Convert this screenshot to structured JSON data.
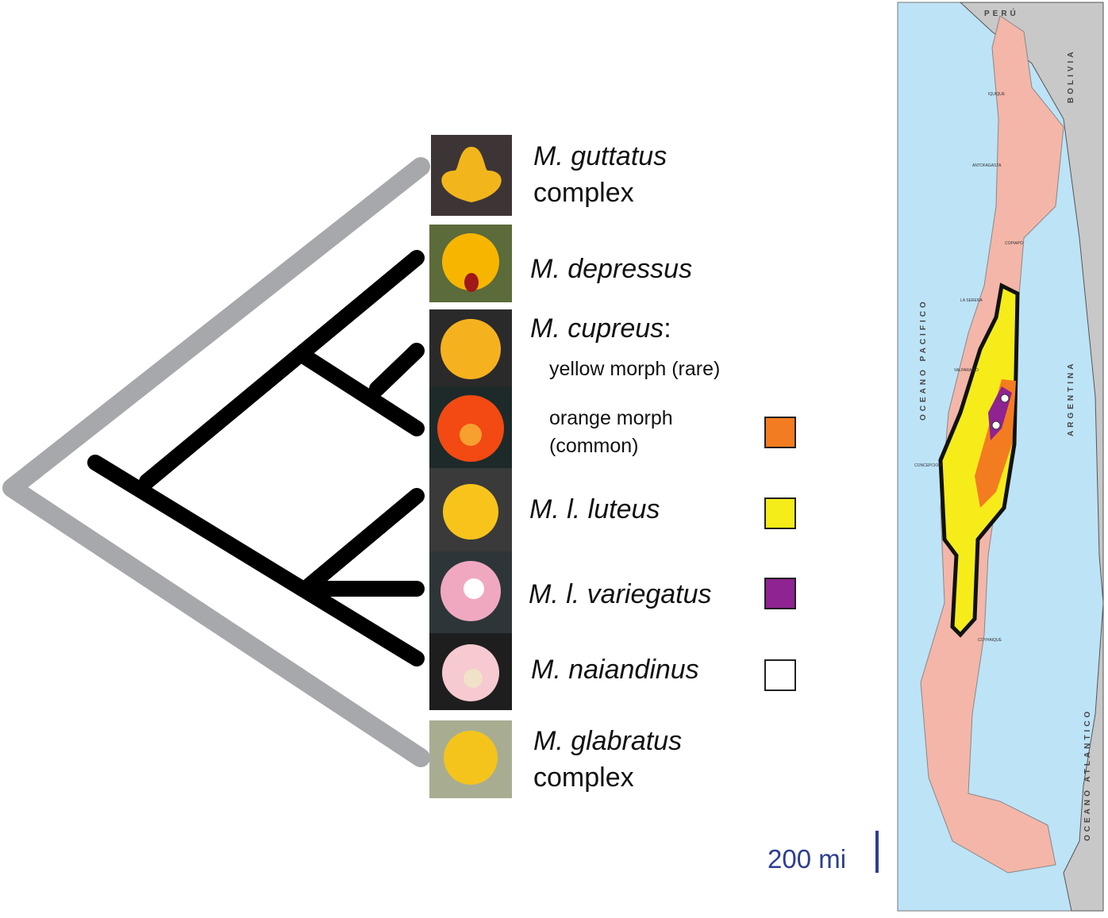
{
  "taxa": [
    {
      "name": "M. guttatus",
      "suffix": "complex"
    },
    {
      "name": "M. depressus"
    },
    {
      "name": "M. cupreus",
      "suffix": ":"
    },
    {
      "name": "M. l. luteus"
    },
    {
      "name": "M. l. variegatus"
    },
    {
      "name": "M. naiandinus"
    },
    {
      "name": "M. glabratus",
      "suffix": "complex"
    }
  ],
  "morphs": [
    {
      "label": "yellow morph (rare)"
    },
    {
      "label": "orange morph",
      "detail": "(common)"
    }
  ],
  "map": {
    "countries": [
      "PERÚ",
      "BOLIVIA",
      "ARGENTINA"
    ],
    "oceans": [
      "OCEANO PACIFICO",
      "OCEANO ATLANTICO"
    ],
    "cities": [
      "IQUIQUE",
      "ANTOFAGASTA",
      "COPIAPÓ",
      "LA SERENA",
      "VALPARAISO",
      "CONCEPCION",
      "COYHAIQUE"
    ],
    "scale": "200 mi"
  }
}
